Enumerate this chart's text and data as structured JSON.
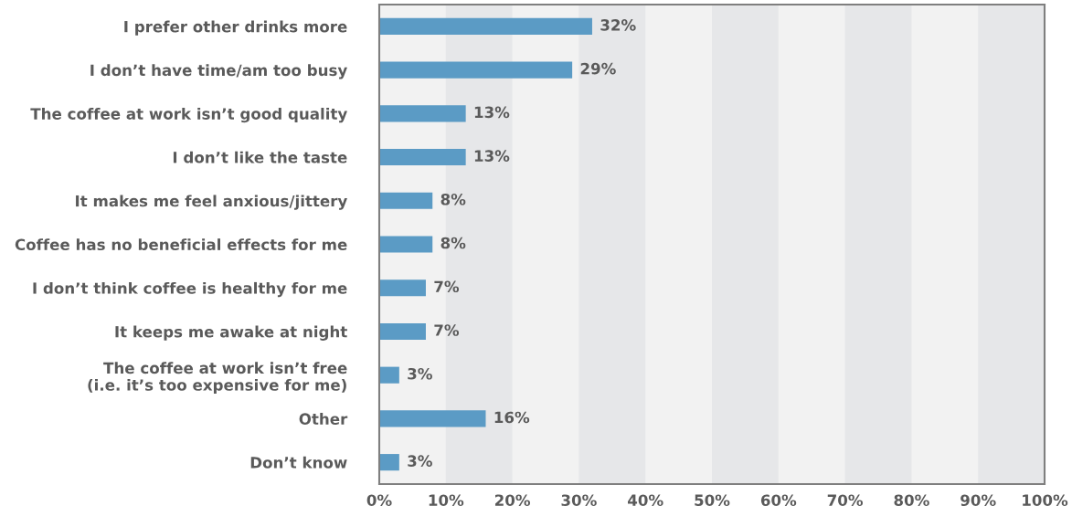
{
  "chart_data": {
    "type": "bar",
    "orientation": "horizontal",
    "categories": [
      "I prefer other drinks more",
      "I don’t have time/am too busy",
      "The coffee at work isn’t good quality",
      "I don’t like the taste",
      "It makes me feel anxious/jittery",
      "Coffee has no beneficial effects for me",
      "I don’t think coffee is healthy for me",
      "It keeps me awake at night",
      "The coffee at work isn’t free\n(i.e. it’s too expensive for me)",
      "Other",
      "Don’t know"
    ],
    "values": [
      32,
      29,
      13,
      13,
      8,
      8,
      7,
      7,
      3,
      16,
      3
    ],
    "value_labels": [
      "32%",
      "29%",
      "13%",
      "13%",
      "8%",
      "8%",
      "7%",
      "7%",
      "3%",
      "16%",
      "3%"
    ],
    "color": "#5b9bc5",
    "xlim": [
      0,
      100
    ],
    "xticks": [
      {
        "value": 0,
        "label": "0%"
      },
      {
        "value": 10,
        "label": "10%"
      },
      {
        "value": 20,
        "label": "20%"
      },
      {
        "value": 30,
        "label": "30%"
      },
      {
        "value": 40,
        "label": "40%"
      },
      {
        "value": 50,
        "label": "50%"
      },
      {
        "value": 60,
        "label": "60%"
      },
      {
        "value": 70,
        "label": "70%"
      },
      {
        "value": 80,
        "label": "80%"
      },
      {
        "value": 90,
        "label": "90%"
      },
      {
        "value": 100,
        "label": "100%"
      }
    ],
    "bands": [
      {
        "axis": "x",
        "from": 10,
        "to": 20,
        "color": "#e6e7e9"
      },
      {
        "axis": "x",
        "from": 30,
        "to": 40,
        "color": "#e6e7e9"
      },
      {
        "axis": "x",
        "from": 50,
        "to": 60,
        "color": "#e6e7e9"
      },
      {
        "axis": "x",
        "from": 70,
        "to": 80,
        "color": "#e6e7e9"
      },
      {
        "axis": "x",
        "from": 90,
        "to": 100,
        "color": "#e6e7e9"
      }
    ],
    "grid": false
  }
}
